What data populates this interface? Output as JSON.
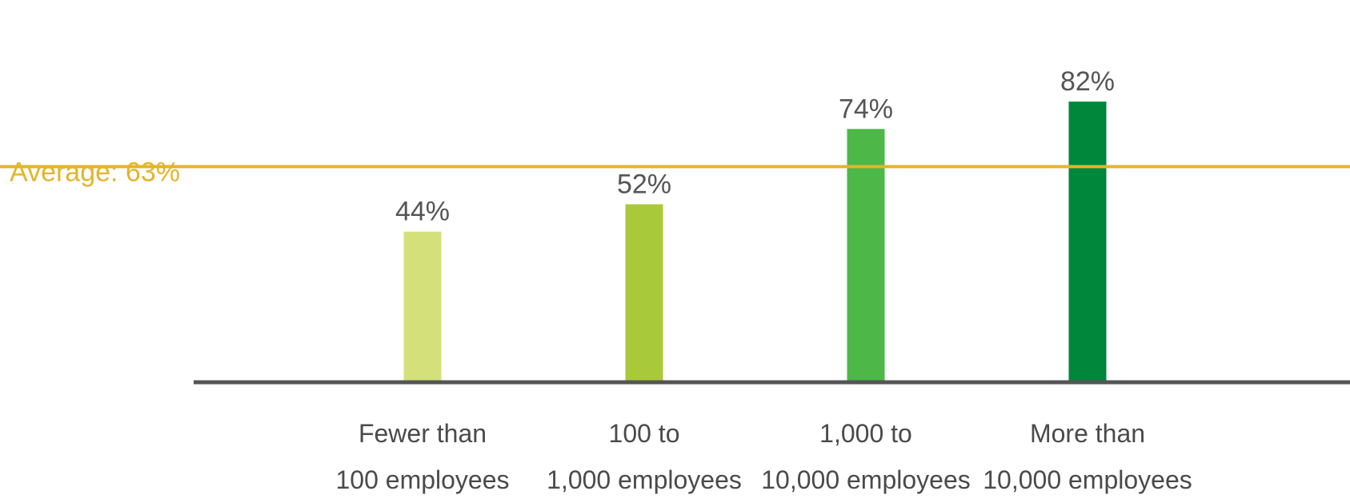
{
  "chart_data": {
    "type": "bar",
    "title": "",
    "xlabel": "",
    "ylabel": "",
    "categories": [
      [
        "Fewer than",
        "100 employees"
      ],
      [
        "100 to",
        "1,000 employees"
      ],
      [
        "1,000 to",
        "10,000 employees"
      ],
      [
        "More than",
        "10,000 employees"
      ]
    ],
    "values": [
      44,
      52,
      74,
      82
    ],
    "value_labels": [
      "44%",
      "52%",
      "74%",
      "82%"
    ],
    "ylim": [
      0,
      100
    ],
    "grid": false,
    "colors": [
      "#d4e17a",
      "#a8c93a",
      "#4db848",
      "#00873c"
    ],
    "axis_color": "#555555",
    "reference_line": {
      "value": 63,
      "label": "Average: 63%",
      "color": "#e3b52b"
    }
  }
}
